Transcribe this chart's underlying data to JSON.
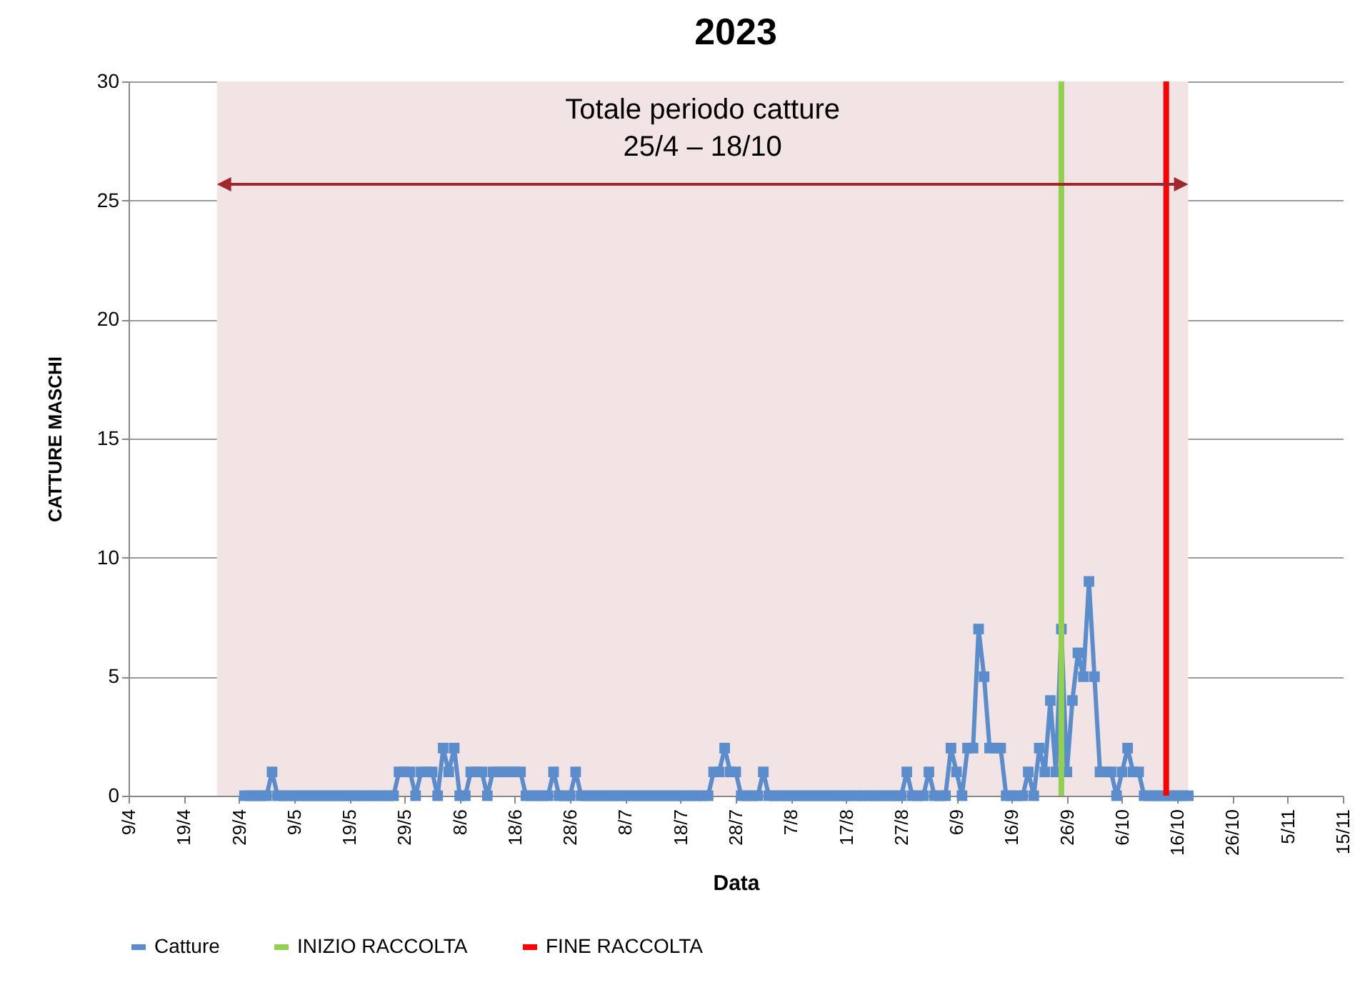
{
  "chart_data": {
    "type": "line",
    "title": "2023",
    "xlabel": "Data",
    "ylabel": "CATTURE MASCHI",
    "x": [
      "2023-04-30",
      "2023-05-01",
      "2023-05-02",
      "2023-05-03",
      "2023-05-04",
      "2023-05-05",
      "2023-05-06",
      "2023-05-07",
      "2023-05-08",
      "2023-05-09",
      "2023-05-10",
      "2023-05-11",
      "2023-05-12",
      "2023-05-13",
      "2023-05-14",
      "2023-05-15",
      "2023-05-16",
      "2023-05-17",
      "2023-05-18",
      "2023-05-19",
      "2023-05-20",
      "2023-05-21",
      "2023-05-22",
      "2023-05-23",
      "2023-05-24",
      "2023-05-25",
      "2023-05-26",
      "2023-05-27",
      "2023-05-28",
      "2023-05-29",
      "2023-05-30",
      "2023-05-31",
      "2023-06-01",
      "2023-06-02",
      "2023-06-03",
      "2023-06-04",
      "2023-06-05",
      "2023-06-06",
      "2023-06-07",
      "2023-06-08",
      "2023-06-09",
      "2023-06-10",
      "2023-06-11",
      "2023-06-12",
      "2023-06-13",
      "2023-06-14",
      "2023-06-15",
      "2023-06-16",
      "2023-06-17",
      "2023-06-18",
      "2023-06-19",
      "2023-06-20",
      "2023-06-21",
      "2023-06-22",
      "2023-06-23",
      "2023-06-24",
      "2023-06-25",
      "2023-06-26",
      "2023-06-27",
      "2023-06-28",
      "2023-06-29",
      "2023-06-30",
      "2023-07-01",
      "2023-07-02",
      "2023-07-03",
      "2023-07-04",
      "2023-07-05",
      "2023-07-06",
      "2023-07-07",
      "2023-07-08",
      "2023-07-09",
      "2023-07-10",
      "2023-07-11",
      "2023-07-12",
      "2023-07-13",
      "2023-07-14",
      "2023-07-15",
      "2023-07-16",
      "2023-07-17",
      "2023-07-18",
      "2023-07-19",
      "2023-07-20",
      "2023-07-21",
      "2023-07-22",
      "2023-07-23",
      "2023-07-24",
      "2023-07-25",
      "2023-07-26",
      "2023-07-27",
      "2023-07-28",
      "2023-07-29",
      "2023-07-30",
      "2023-07-31",
      "2023-08-01",
      "2023-08-02",
      "2023-08-03",
      "2023-08-04",
      "2023-08-05",
      "2023-08-06",
      "2023-08-07",
      "2023-08-08",
      "2023-08-09",
      "2023-08-10",
      "2023-08-11",
      "2023-08-12",
      "2023-08-13",
      "2023-08-14",
      "2023-08-15",
      "2023-08-16",
      "2023-08-17",
      "2023-08-18",
      "2023-08-19",
      "2023-08-20",
      "2023-08-21",
      "2023-08-22",
      "2023-08-23",
      "2023-08-24",
      "2023-08-25",
      "2023-08-26",
      "2023-08-27",
      "2023-08-28",
      "2023-08-29",
      "2023-08-30",
      "2023-08-31",
      "2023-09-01",
      "2023-09-02",
      "2023-09-03",
      "2023-09-04",
      "2023-09-05",
      "2023-09-06",
      "2023-09-07",
      "2023-09-08",
      "2023-09-09",
      "2023-09-10",
      "2023-09-11",
      "2023-09-12",
      "2023-09-13",
      "2023-09-14",
      "2023-09-15",
      "2023-09-16",
      "2023-09-17",
      "2023-09-18",
      "2023-09-19",
      "2023-09-20",
      "2023-09-21",
      "2023-09-22",
      "2023-09-23",
      "2023-09-24",
      "2023-09-25",
      "2023-09-26",
      "2023-09-27",
      "2023-09-28",
      "2023-09-29",
      "2023-09-30",
      "2023-10-01",
      "2023-10-02",
      "2023-10-03",
      "2023-10-04",
      "2023-10-05",
      "2023-10-06",
      "2023-10-07",
      "2023-10-08",
      "2023-10-09",
      "2023-10-10",
      "2023-10-11",
      "2023-10-12",
      "2023-10-13",
      "2023-10-14",
      "2023-10-15",
      "2023-10-16",
      "2023-10-17",
      "2023-10-18"
    ],
    "series": [
      {
        "name": "Catture",
        "color": "#5b8dcc",
        "values": [
          0,
          0,
          0,
          0,
          0,
          1,
          0,
          0,
          0,
          0,
          0,
          0,
          0,
          0,
          0,
          0,
          0,
          0,
          0,
          0,
          0,
          0,
          0,
          0,
          0,
          0,
          0,
          0,
          1,
          1,
          1,
          0,
          1,
          1,
          1,
          0,
          2,
          1,
          2,
          0,
          0,
          1,
          1,
          1,
          0,
          1,
          1,
          1,
          1,
          1,
          1,
          0,
          0,
          0,
          0,
          0,
          1,
          0,
          0,
          0,
          1,
          0,
          0,
          0,
          0,
          0,
          0,
          0,
          0,
          0,
          0,
          0,
          0,
          0,
          0,
          0,
          0,
          0,
          0,
          0,
          0,
          0,
          0,
          0,
          0,
          1,
          1,
          2,
          1,
          1,
          0,
          0,
          0,
          0,
          1,
          0,
          0,
          0,
          0,
          0,
          0,
          0,
          0,
          0,
          0,
          0,
          0,
          0,
          0,
          0,
          0,
          0,
          0,
          0,
          0,
          0,
          0,
          0,
          0,
          0,
          1,
          0,
          0,
          0,
          1,
          0,
          0,
          0,
          2,
          1,
          0,
          2,
          2,
          7,
          5,
          2,
          2,
          2,
          0,
          0,
          0,
          0,
          1,
          0,
          2,
          1,
          4,
          1,
          7,
          1,
          4,
          6,
          5,
          9,
          5,
          1,
          1,
          1,
          0,
          1,
          2,
          1,
          1,
          0,
          0,
          0,
          0,
          0,
          0,
          0,
          0,
          0
        ]
      }
    ],
    "xlim": [
      "2023-04-09",
      "2023-11-15"
    ],
    "xticks": [
      {
        "value": "2023-04-09",
        "label": "9/4"
      },
      {
        "value": "2023-04-19",
        "label": "19/4"
      },
      {
        "value": "2023-04-29",
        "label": "29/4"
      },
      {
        "value": "2023-05-09",
        "label": "9/5"
      },
      {
        "value": "2023-05-19",
        "label": "19/5"
      },
      {
        "value": "2023-05-29",
        "label": "29/5"
      },
      {
        "value": "2023-06-08",
        "label": "8/6"
      },
      {
        "value": "2023-06-18",
        "label": "18/6"
      },
      {
        "value": "2023-06-28",
        "label": "28/6"
      },
      {
        "value": "2023-07-08",
        "label": "8/7"
      },
      {
        "value": "2023-07-18",
        "label": "18/7"
      },
      {
        "value": "2023-07-28",
        "label": "28/7"
      },
      {
        "value": "2023-08-07",
        "label": "7/8"
      },
      {
        "value": "2023-08-17",
        "label": "17/8"
      },
      {
        "value": "2023-08-27",
        "label": "27/8"
      },
      {
        "value": "2023-09-06",
        "label": "6/9"
      },
      {
        "value": "2023-09-16",
        "label": "16/9"
      },
      {
        "value": "2023-09-26",
        "label": "26/9"
      },
      {
        "value": "2023-10-06",
        "label": "6/10"
      },
      {
        "value": "2023-10-16",
        "label": "16/10"
      },
      {
        "value": "2023-10-26",
        "label": "26/10"
      },
      {
        "value": "2023-11-05",
        "label": "5/11"
      },
      {
        "value": "2023-11-15",
        "label": "15/11"
      }
    ],
    "ylim": [
      0,
      30
    ],
    "yticks": [
      0,
      5,
      10,
      15,
      20,
      25,
      30
    ],
    "grid": "y",
    "legend": "bottom",
    "marker": "square",
    "line_style": "solid",
    "ref_lines": [
      {
        "axis": "x",
        "value": "2023-09-25",
        "label": "INIZIO RACCOLTA",
        "color": "#92d050"
      },
      {
        "axis": "x",
        "value": "2023-10-14",
        "label": "FINE RACCOLTA",
        "color": "#ff0000"
      }
    ],
    "bands": [
      {
        "axis": "x",
        "from": "2023-04-25",
        "to": "2023-10-18",
        "label": "Totale periodo catture\n25/4 – 18/10",
        "color": "#f2e4e4"
      }
    ]
  }
}
